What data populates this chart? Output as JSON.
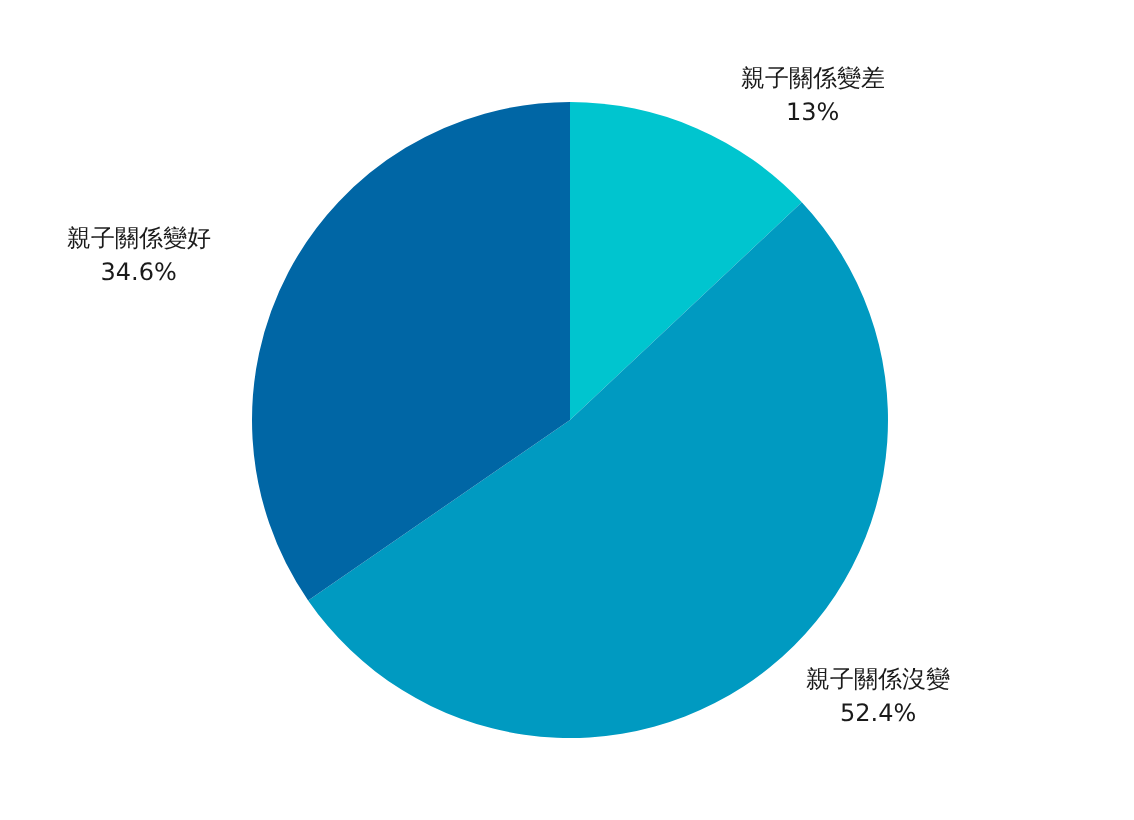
{
  "chart_data": {
    "type": "pie",
    "categories": [
      "親子關係變差",
      "親子關係沒變",
      "親子關係變好"
    ],
    "values": [
      13,
      52.4,
      34.6
    ],
    "colors": [
      "#00c5cf",
      "#009ac1",
      "#0066a5"
    ],
    "value_labels": [
      "13%",
      "52.4%",
      "34.6%"
    ],
    "legend": false
  }
}
